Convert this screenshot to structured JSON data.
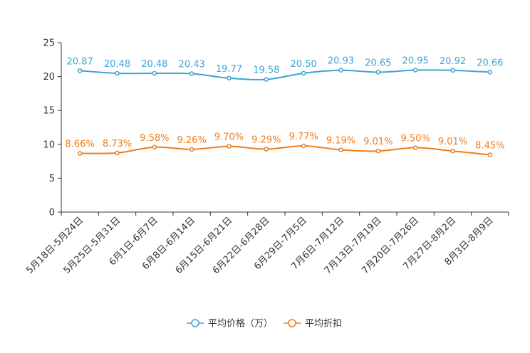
{
  "chart_data": {
    "type": "line",
    "categories": [
      "5月18日-5月24日",
      "5月25日-5月31日",
      "6月1日-6月7日",
      "6月8日-6月14日",
      "6月15日-6月21日",
      "6月22日-6月28日",
      "6月29日-7月5日",
      "7月6日-7月12日",
      "7月13日-7月19日",
      "7月20日-7月26日",
      "7月27日-8月2日",
      "8月3日-8月9日"
    ],
    "ylim": [
      0,
      25
    ],
    "yticks": [
      0,
      5,
      10,
      15,
      20,
      25
    ],
    "ytick_labels": [
      "0",
      "5",
      "10",
      "15",
      "20",
      "25"
    ],
    "series": [
      {
        "name": "平均价格（万）",
        "color": "#3fa3d6",
        "values": [
          20.87,
          20.48,
          20.48,
          20.43,
          19.77,
          19.58,
          20.5,
          20.93,
          20.65,
          20.95,
          20.92,
          20.66
        ],
        "labels": [
          "20.87",
          "20.48",
          "20.48",
          "20.43",
          "19.77",
          "19.58",
          "20.50",
          "20.93",
          "20.65",
          "20.95",
          "20.92",
          "20.66"
        ]
      },
      {
        "name": "平均折扣",
        "color": "#f07d1a",
        "values": [
          8.66,
          8.73,
          9.58,
          9.26,
          9.7,
          9.29,
          9.77,
          9.19,
          9.01,
          9.5,
          9.01,
          8.45
        ],
        "labels": [
          "8.66%",
          "8.73%",
          "9.58%",
          "9.26%",
          "9.70%",
          "9.29%",
          "9.77%",
          "9.19%",
          "9.01%",
          "9.50%",
          "9.01%",
          "8.45%"
        ]
      }
    ],
    "legend_position": "bottom-center"
  }
}
